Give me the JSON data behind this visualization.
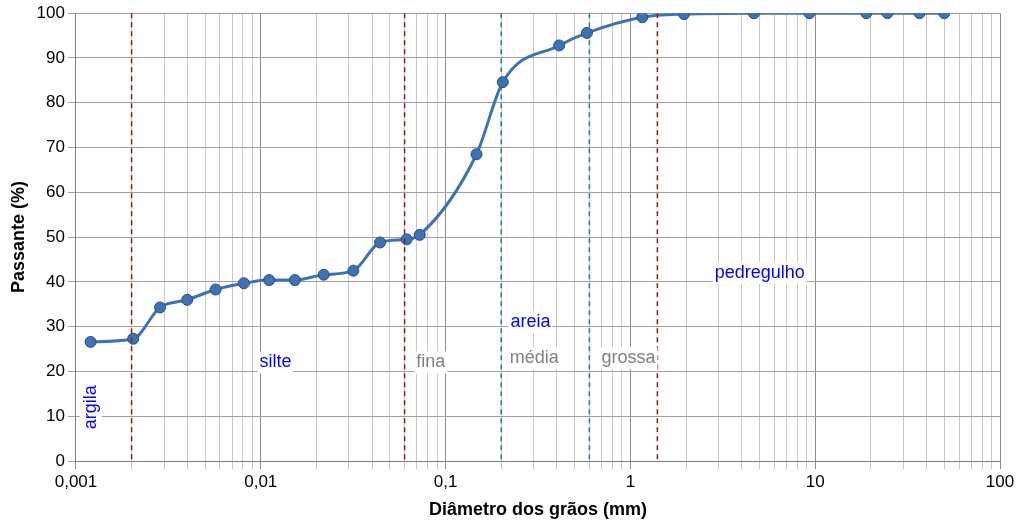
{
  "chart_data": {
    "type": "line",
    "xlabel": "Diâmetro dos grãos (mm)",
    "ylabel": "Passante (%)",
    "log": "x",
    "grid": true,
    "legend": false,
    "marker": "circle",
    "line_style": "solid",
    "xlim": [
      0.001,
      100
    ],
    "xticks": [
      {
        "value": 0.001,
        "label": "0,001"
      },
      {
        "value": 0.01,
        "label": "0,01"
      },
      {
        "value": 0.1,
        "label": "0,1"
      },
      1,
      10,
      100
    ],
    "ylim": [
      0,
      100
    ],
    "yticks": [
      0,
      10,
      20,
      30,
      40,
      50,
      60,
      70,
      80,
      90,
      100
    ],
    "series": [
      {
        "color": "#3f72b5",
        "x": [
          0.0012,
          0.00204,
          0.00285,
          0.004,
          0.0057,
          0.0081,
          0.0111,
          0.0153,
          0.0219,
          0.0317,
          0.0442,
          0.0616,
          0.0725,
          0.147,
          0.204,
          0.412,
          0.582,
          1.16,
          1.95,
          4.66,
          9.3,
          18.9,
          24.6,
          36.7,
          49.9
        ],
        "values": [
          26.6,
          27.3,
          34.3,
          36,
          38.3,
          39.7,
          40.4,
          40.4,
          41.6,
          42.5,
          48.8,
          49.5,
          50.5,
          68.5,
          84.6,
          92.8,
          95.6,
          99.1,
          99.8,
          100,
          100,
          100,
          100,
          100,
          100
        ]
      }
    ],
    "ref_lines": [
      {
        "axis": "x",
        "value": 0.002,
        "color": "#8b1a1a",
        "line_style": "dashed"
      },
      {
        "axis": "x",
        "value": 0.06,
        "color": "#8b1a1a",
        "line_style": "dashed"
      },
      {
        "axis": "x",
        "value": 1.4,
        "color": "#8b1a1a",
        "line_style": "dashed"
      },
      {
        "axis": "x",
        "value": 0.2,
        "color": "#1f7f8c",
        "line_style": "dashed"
      },
      {
        "axis": "x",
        "value": 0.6,
        "color": "#1f7f8c",
        "line_style": "dashed"
      }
    ],
    "annotations": [
      "argila",
      "silte",
      "fina",
      "areia",
      "média",
      "grossa",
      "pedregulho"
    ]
  }
}
